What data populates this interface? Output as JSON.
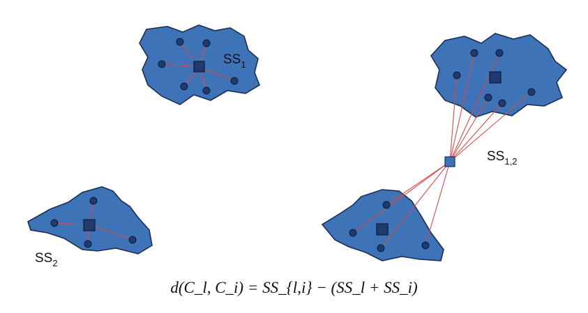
{
  "diagram": {
    "labels": {
      "ss1": {
        "base": "SS",
        "sub": "1"
      },
      "ss2": {
        "base": "SS",
        "sub": "2"
      },
      "ss12": {
        "base": "SS",
        "sub": "1,2"
      }
    },
    "formula": "d(C_l, C_i) = SS_{l,i} − (SS_l + SS_i)"
  },
  "colors": {
    "cluster_fill": "#3f73b8",
    "cluster_outline": "#1a2e52",
    "point": "#1e3a6e",
    "link": "#d44a4a"
  }
}
